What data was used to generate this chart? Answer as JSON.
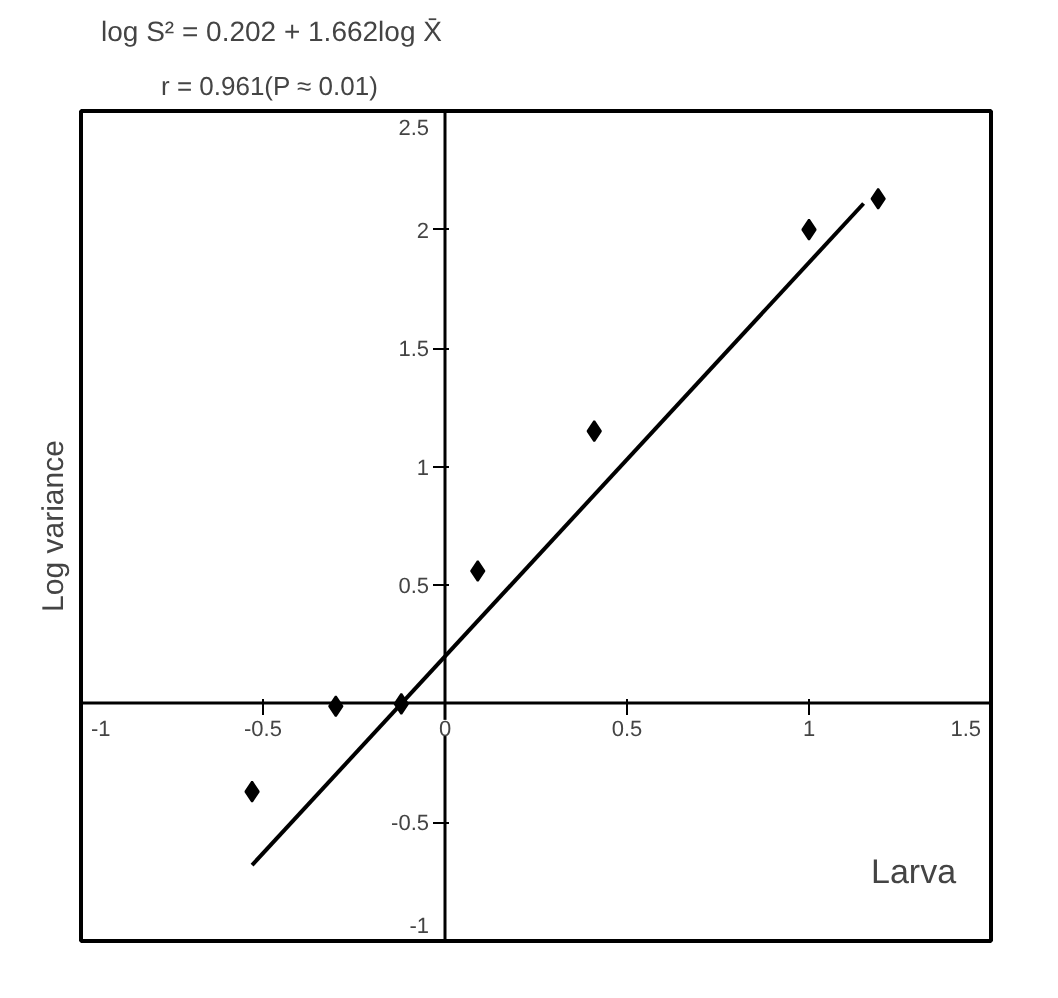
{
  "chart_data": {
    "type": "scatter",
    "title": "log S² = 0.202 + 1.662log X̄",
    "subtitle": "r = 0.961(P ≈ 0.01)",
    "xlabel": "Larva",
    "ylabel": "Log variance",
    "xlim": [
      -1,
      1.5
    ],
    "ylim": [
      -1,
      2.5
    ],
    "xticks": [
      -1,
      -0.5,
      0,
      0.5,
      1,
      1.5
    ],
    "yticks": [
      -1,
      -0.5,
      0.5,
      1,
      1.5,
      2,
      2.5
    ],
    "grid": false,
    "marker": "diamond",
    "series": [
      {
        "color": "#000000",
        "x": [
          -0.53,
          -0.3,
          -0.12,
          0.09,
          0.41,
          1.0,
          1.19
        ],
        "values": [
          -0.37,
          -0.01,
          0.0,
          0.56,
          1.15,
          2.0,
          2.13
        ]
      },
      {
        "type": "line",
        "color": "#000000",
        "line_style": "solid",
        "marker": "none",
        "x": [
          -0.53,
          1.15
        ],
        "values": [
          -0.68,
          2.11
        ]
      }
    ]
  }
}
